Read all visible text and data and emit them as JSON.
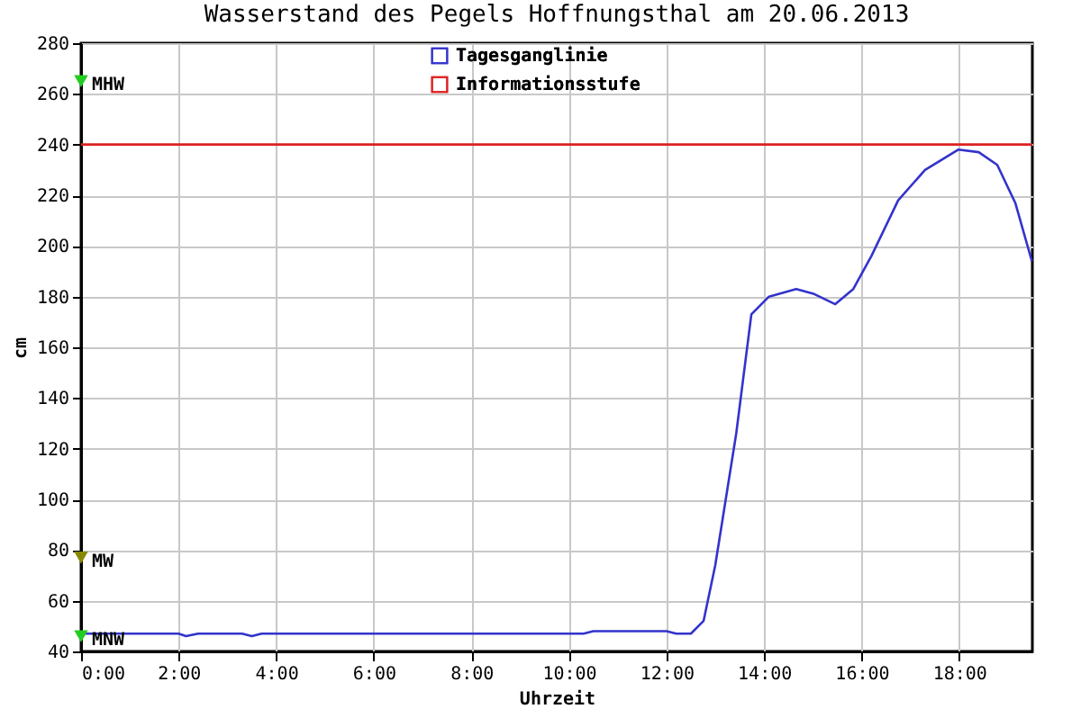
{
  "chart_data": {
    "type": "line",
    "title": "Wasserstand des Pegels Hoffnungsthal am  20.06.2013",
    "xlabel": "Uhrzeit",
    "ylabel": "cm",
    "series": [
      {
        "name": "Tagesganglinie",
        "color": "#3333cc",
        "x": [
          0,
          2.0,
          2.15,
          2.4,
          3.3,
          3.5,
          3.7,
          6,
          8,
          10.3,
          10.5,
          12.0,
          12.2,
          12.5,
          12.76,
          13.0,
          13.43,
          13.74,
          14.1,
          14.66,
          15.03,
          15.46,
          15.83,
          16.2,
          16.75,
          17.3,
          17.98,
          18.4,
          18.78,
          19.15,
          19.49
        ],
        "values": [
          47,
          47,
          46,
          47,
          47,
          46,
          47,
          47,
          47,
          47,
          48,
          48,
          47,
          47,
          52,
          74,
          126,
          173,
          180,
          183,
          181,
          177,
          183,
          196,
          218,
          230,
          238,
          237,
          232,
          217,
          194
        ]
      },
      {
        "type": "scatter",
        "marker": "triangle",
        "x": [
          0,
          0,
          0
        ],
        "values": [
          265,
          77,
          46
        ],
        "colors": [
          "#22cc22",
          "#888800",
          "#22cc22"
        ],
        "value_labels": [
          "MHW",
          "MW",
          "MNW"
        ]
      }
    ],
    "ref_lines": [
      {
        "axis": "y",
        "value": 240,
        "label": "Informationsstufe",
        "color": "#dd2222"
      }
    ],
    "xlim": [
      0,
      19.5
    ],
    "ylim": [
      40,
      280
    ],
    "xticks": [
      {
        "value": 0,
        "label": "0:00"
      },
      {
        "value": 2,
        "label": "2:00"
      },
      {
        "value": 4,
        "label": "4:00"
      },
      {
        "value": 6,
        "label": "6:00"
      },
      {
        "value": 8,
        "label": "8:00"
      },
      {
        "value": 10,
        "label": "10:00"
      },
      {
        "value": 12,
        "label": "12:00"
      },
      {
        "value": 14,
        "label": "14:00"
      },
      {
        "value": 16,
        "label": "16:00"
      },
      {
        "value": 18,
        "label": "18:00"
      }
    ],
    "yticks": [
      40,
      60,
      80,
      100,
      120,
      140,
      160,
      180,
      200,
      220,
      240,
      260,
      280
    ],
    "grid": true,
    "legend": "top",
    "line_style": "solid"
  }
}
